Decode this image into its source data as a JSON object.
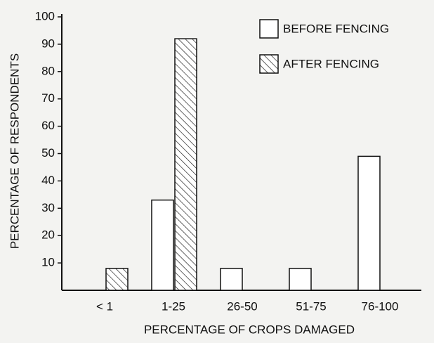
{
  "chart_data": {
    "type": "bar",
    "categories": [
      "< 1",
      "1-25",
      "26-50",
      "51-75",
      "76-100"
    ],
    "series": [
      {
        "name": "BEFORE FENCING",
        "color": "#ffffff",
        "values": [
          0,
          33,
          8,
          8,
          49
        ]
      },
      {
        "name": "AFTER FENCING",
        "color": "#ffffff",
        "pattern": "hatch",
        "values": [
          8,
          92,
          0,
          0,
          0
        ]
      }
    ],
    "xlabel": "PERCENTAGE OF CROPS DAMAGED",
    "ylabel": "PERCENTAGE OF RESPONDENTS",
    "ylim": [
      0,
      100
    ],
    "yticks": [
      10,
      20,
      30,
      40,
      50,
      60,
      70,
      80,
      90,
      100
    ],
    "legend": "top-right"
  }
}
